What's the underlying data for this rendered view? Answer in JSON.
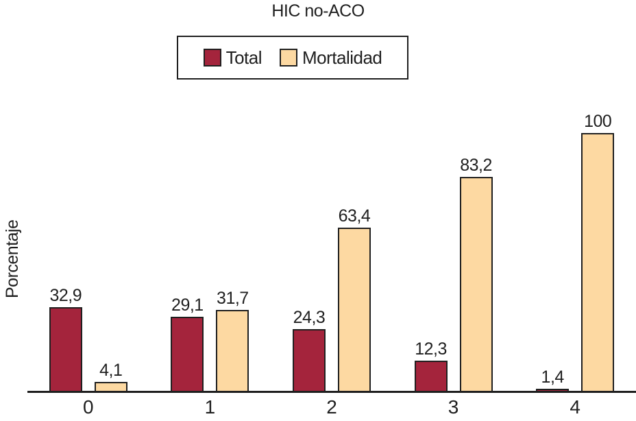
{
  "chart_data": {
    "type": "bar",
    "title": "HIC no-ACO",
    "xlabel": "",
    "ylabel": "Porcentaje",
    "categories": [
      "0",
      "1",
      "2",
      "3",
      "4"
    ],
    "series": [
      {
        "name": "Total",
        "color": "#A4243C",
        "values": [
          32.9,
          29.1,
          24.3,
          12.3,
          1.4
        ],
        "labels": [
          "32,9",
          "29,1",
          "24,3",
          "12,3",
          "1,4"
        ]
      },
      {
        "name": "Mortalidad",
        "color": "#FDD9A2",
        "values": [
          4.1,
          31.7,
          63.4,
          83.2,
          100
        ],
        "labels": [
          "4,1",
          "31,7",
          "63,4",
          "83,2",
          "100"
        ]
      }
    ],
    "ylim": [
      0,
      100
    ],
    "grid": false,
    "legend_position": "top",
    "outline_color": "#1F1F1F",
    "background_color": "#FFFFFF"
  }
}
